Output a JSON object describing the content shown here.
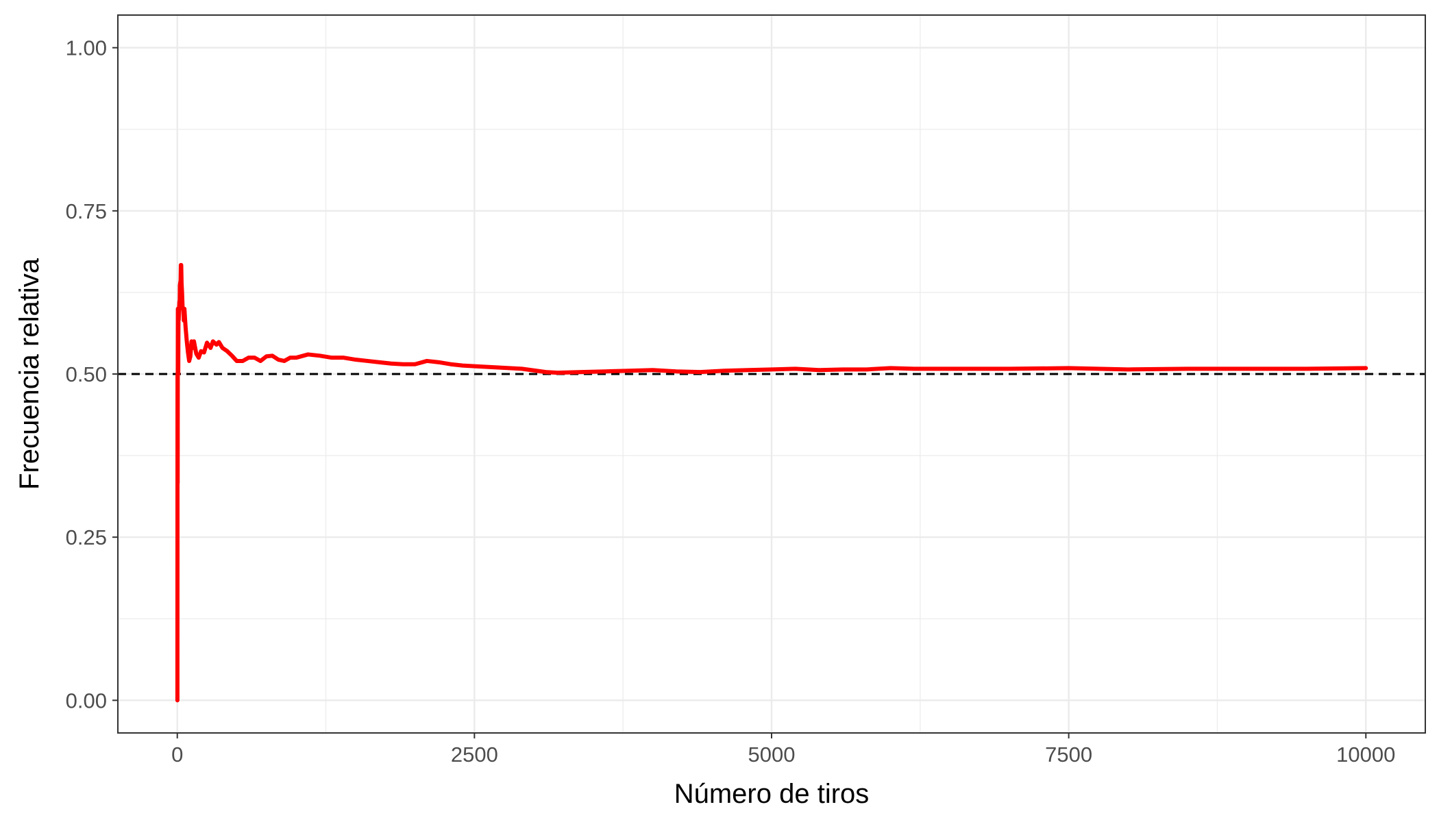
{
  "chart_data": {
    "type": "line",
    "title": "",
    "xlabel": "Número de tiros",
    "ylabel": "Frecuencia relativa",
    "xlim": [
      -500,
      10500
    ],
    "ylim": [
      -0.05,
      1.05
    ],
    "x_ticks": [
      0,
      2500,
      5000,
      7500,
      10000
    ],
    "x_tick_labels": [
      "0",
      "2500",
      "5000",
      "7500",
      "10000"
    ],
    "y_ticks": [
      0,
      0.25,
      0.5,
      0.75,
      1.0
    ],
    "y_tick_labels": [
      "0.00",
      "0.25",
      "0.50",
      "0.75",
      "1.00"
    ],
    "grid": true,
    "legend": "none",
    "reference_line": {
      "y": 0.5,
      "style": "dashed",
      "color": "#000000"
    },
    "series": [
      {
        "color": "#ff0000",
        "points": [
          [
            1,
            0
          ],
          [
            2,
            0.5
          ],
          [
            3,
            0.333
          ],
          [
            4,
            0.5
          ],
          [
            5,
            0.6
          ],
          [
            6,
            0.5
          ],
          [
            8,
            0.5
          ],
          [
            10,
            0.6
          ],
          [
            12,
            0.583
          ],
          [
            15,
            0.6
          ],
          [
            18,
            0.611
          ],
          [
            20,
            0.6
          ],
          [
            22,
            0.636
          ],
          [
            25,
            0.64
          ],
          [
            28,
            0.643
          ],
          [
            30,
            0.667
          ],
          [
            33,
            0.667
          ],
          [
            36,
            0.639
          ],
          [
            40,
            0.625
          ],
          [
            45,
            0.6
          ],
          [
            50,
            0.6
          ],
          [
            55,
            0.582
          ],
          [
            60,
            0.6
          ],
          [
            65,
            0.585
          ],
          [
            70,
            0.571
          ],
          [
            80,
            0.55
          ],
          [
            90,
            0.533
          ],
          [
            100,
            0.52
          ],
          [
            110,
            0.527
          ],
          [
            120,
            0.55
          ],
          [
            130,
            0.54
          ],
          [
            140,
            0.55
          ],
          [
            160,
            0.531
          ],
          [
            180,
            0.525
          ],
          [
            200,
            0.535
          ],
          [
            225,
            0.533
          ],
          [
            250,
            0.548
          ],
          [
            280,
            0.54
          ],
          [
            300,
            0.55
          ],
          [
            330,
            0.545
          ],
          [
            350,
            0.549
          ],
          [
            380,
            0.54
          ],
          [
            420,
            0.535
          ],
          [
            460,
            0.528
          ],
          [
            500,
            0.52
          ],
          [
            550,
            0.52
          ],
          [
            600,
            0.525
          ],
          [
            650,
            0.525
          ],
          [
            700,
            0.52
          ],
          [
            750,
            0.527
          ],
          [
            800,
            0.528
          ],
          [
            850,
            0.522
          ],
          [
            900,
            0.52
          ],
          [
            950,
            0.525
          ],
          [
            1000,
            0.525
          ],
          [
            1100,
            0.53
          ],
          [
            1200,
            0.528
          ],
          [
            1300,
            0.525
          ],
          [
            1400,
            0.525
          ],
          [
            1500,
            0.522
          ],
          [
            1600,
            0.52
          ],
          [
            1700,
            0.518
          ],
          [
            1800,
            0.516
          ],
          [
            1900,
            0.515
          ],
          [
            2000,
            0.515
          ],
          [
            2100,
            0.52
          ],
          [
            2200,
            0.518
          ],
          [
            2300,
            0.515
          ],
          [
            2400,
            0.513
          ],
          [
            2500,
            0.512
          ],
          [
            2700,
            0.51
          ],
          [
            2900,
            0.508
          ],
          [
            3100,
            0.503
          ],
          [
            3200,
            0.502
          ],
          [
            3400,
            0.503
          ],
          [
            3600,
            0.504
          ],
          [
            3800,
            0.505
          ],
          [
            4000,
            0.506
          ],
          [
            4200,
            0.504
          ],
          [
            4400,
            0.503
          ],
          [
            4600,
            0.505
          ],
          [
            4800,
            0.506
          ],
          [
            5000,
            0.507
          ],
          [
            5200,
            0.508
          ],
          [
            5400,
            0.506
          ],
          [
            5600,
            0.507
          ],
          [
            5800,
            0.507
          ],
          [
            6000,
            0.509
          ],
          [
            6200,
            0.508
          ],
          [
            6500,
            0.508
          ],
          [
            7000,
            0.508
          ],
          [
            7500,
            0.509
          ],
          [
            8000,
            0.507
          ],
          [
            8500,
            0.508
          ],
          [
            9000,
            0.508
          ],
          [
            9500,
            0.508
          ],
          [
            10000,
            0.509
          ]
        ]
      }
    ]
  }
}
